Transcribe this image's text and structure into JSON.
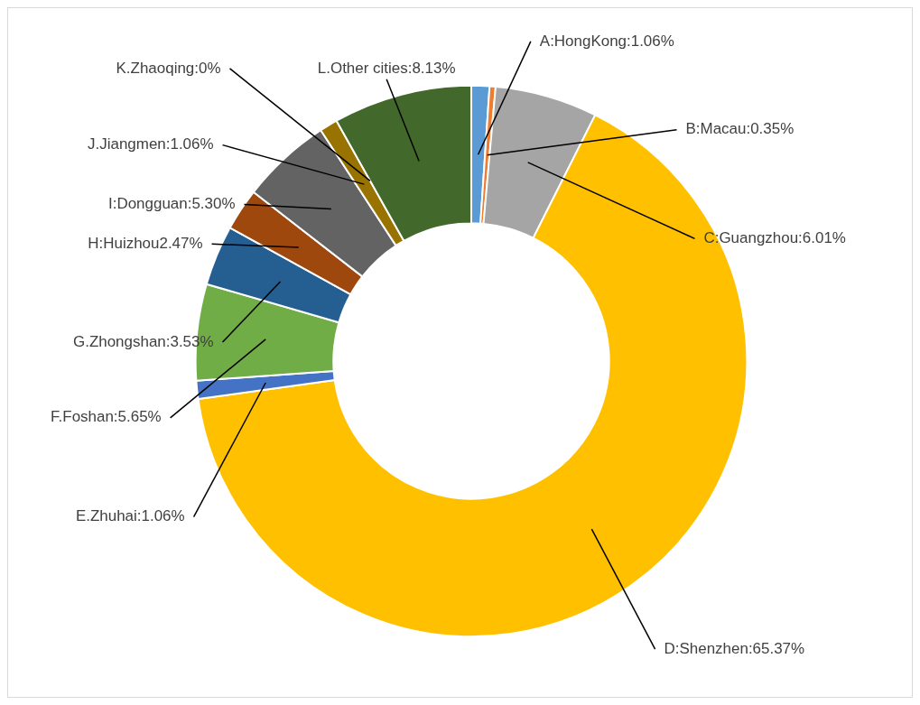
{
  "chart_data": {
    "type": "donut",
    "categories": [
      "A:HongKong:1.06%",
      "B:Macau:0.35%",
      "C:Guangzhou:6.01%",
      "D:Shenzhen:65.37%",
      "E.Zhuhai:1.06%",
      "F.Foshan:5.65%",
      "G.Zhongshan:3.53%",
      "H:Huizhou2.47%",
      "I:Dongguan:5.30%",
      "J.Jiangmen:1.06%",
      "K.Zhaoqing:0%",
      "L.Other cities:8.13%"
    ],
    "values": [
      1.06,
      0.35,
      6.01,
      65.37,
      1.06,
      5.65,
      3.53,
      2.47,
      5.3,
      1.06,
      0,
      8.13
    ],
    "colors": [
      "#5b9bd5",
      "#ed7d31",
      "#a5a5a5",
      "#ffc000",
      "#4472c4",
      "#70ad47",
      "#255e91",
      "#9e480e",
      "#636363",
      "#997300",
      "#264478",
      "#43682b"
    ],
    "legend": false
  }
}
